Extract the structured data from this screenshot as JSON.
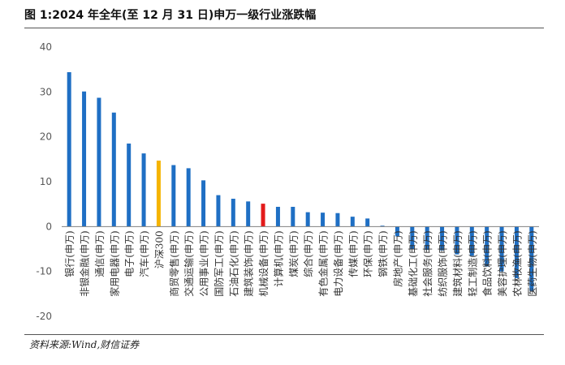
{
  "figure": {
    "title": "图 1:2024 年全年(至 12 月 31 日)申万一级行业涨跌幅",
    "source": "资料来源:Wind,财信证券"
  },
  "colors": {
    "bar": "#1F6FC4",
    "benchmark": "#F5B400",
    "highlight": "#E31B1B",
    "axis_text": "#595959",
    "zero_line": "#808080"
  },
  "chart_data": {
    "type": "bar",
    "title": "",
    "xlabel": "",
    "ylabel": "",
    "ylim": [
      -20,
      40
    ],
    "yticks": [
      -20,
      -10,
      0,
      10,
      20,
      30,
      40
    ],
    "grid": false,
    "legend": "none",
    "categories": [
      "银行(申万)",
      "非银金融(申万)",
      "通信(申万)",
      "家用电器(申万)",
      "电子(申万)",
      "汽车(申万)",
      "沪深300",
      "商贸零售(申万)",
      "交通运输(申万)",
      "公用事业(申万)",
      "国防军工(申万)",
      "石油石化(申万)",
      "建筑装饰(申万)",
      "机械设备(申万)",
      "计算机(申万)",
      "煤炭(申万)",
      "综合(申万)",
      "有色金属(申万)",
      "电力设备(申万)",
      "传媒(申万)",
      "环保(申万)",
      "钢铁(申万)",
      "房地产(申万)",
      "基础化工(申万)",
      "社会服务(申万)",
      "纺织服饰(申万)",
      "建筑材料(申万)",
      "轻工制造(申万)",
      "食品饮料(申万)",
      "美容护理(申万)",
      "农林牧渔(申万)",
      "医药生物(申万)"
    ],
    "values": [
      34.4,
      30.1,
      28.7,
      25.4,
      18.5,
      16.3,
      14.7,
      13.7,
      13.0,
      10.3,
      7.0,
      6.2,
      5.6,
      5.1,
      4.4,
      4.4,
      3.2,
      3.1,
      3.0,
      2.2,
      1.8,
      0.2,
      -2.2,
      -5.0,
      -5.2,
      -5.3,
      -6.2,
      -6.5,
      -8.9,
      -10.0,
      -11.5,
      -14.3
    ],
    "bar_roles": [
      "normal",
      "normal",
      "normal",
      "normal",
      "normal",
      "normal",
      "benchmark",
      "normal",
      "normal",
      "normal",
      "normal",
      "normal",
      "normal",
      "highlight",
      "normal",
      "normal",
      "normal",
      "normal",
      "normal",
      "normal",
      "normal",
      "normal",
      "normal",
      "normal",
      "normal",
      "normal",
      "normal",
      "normal",
      "normal",
      "normal",
      "normal",
      "normal"
    ]
  }
}
